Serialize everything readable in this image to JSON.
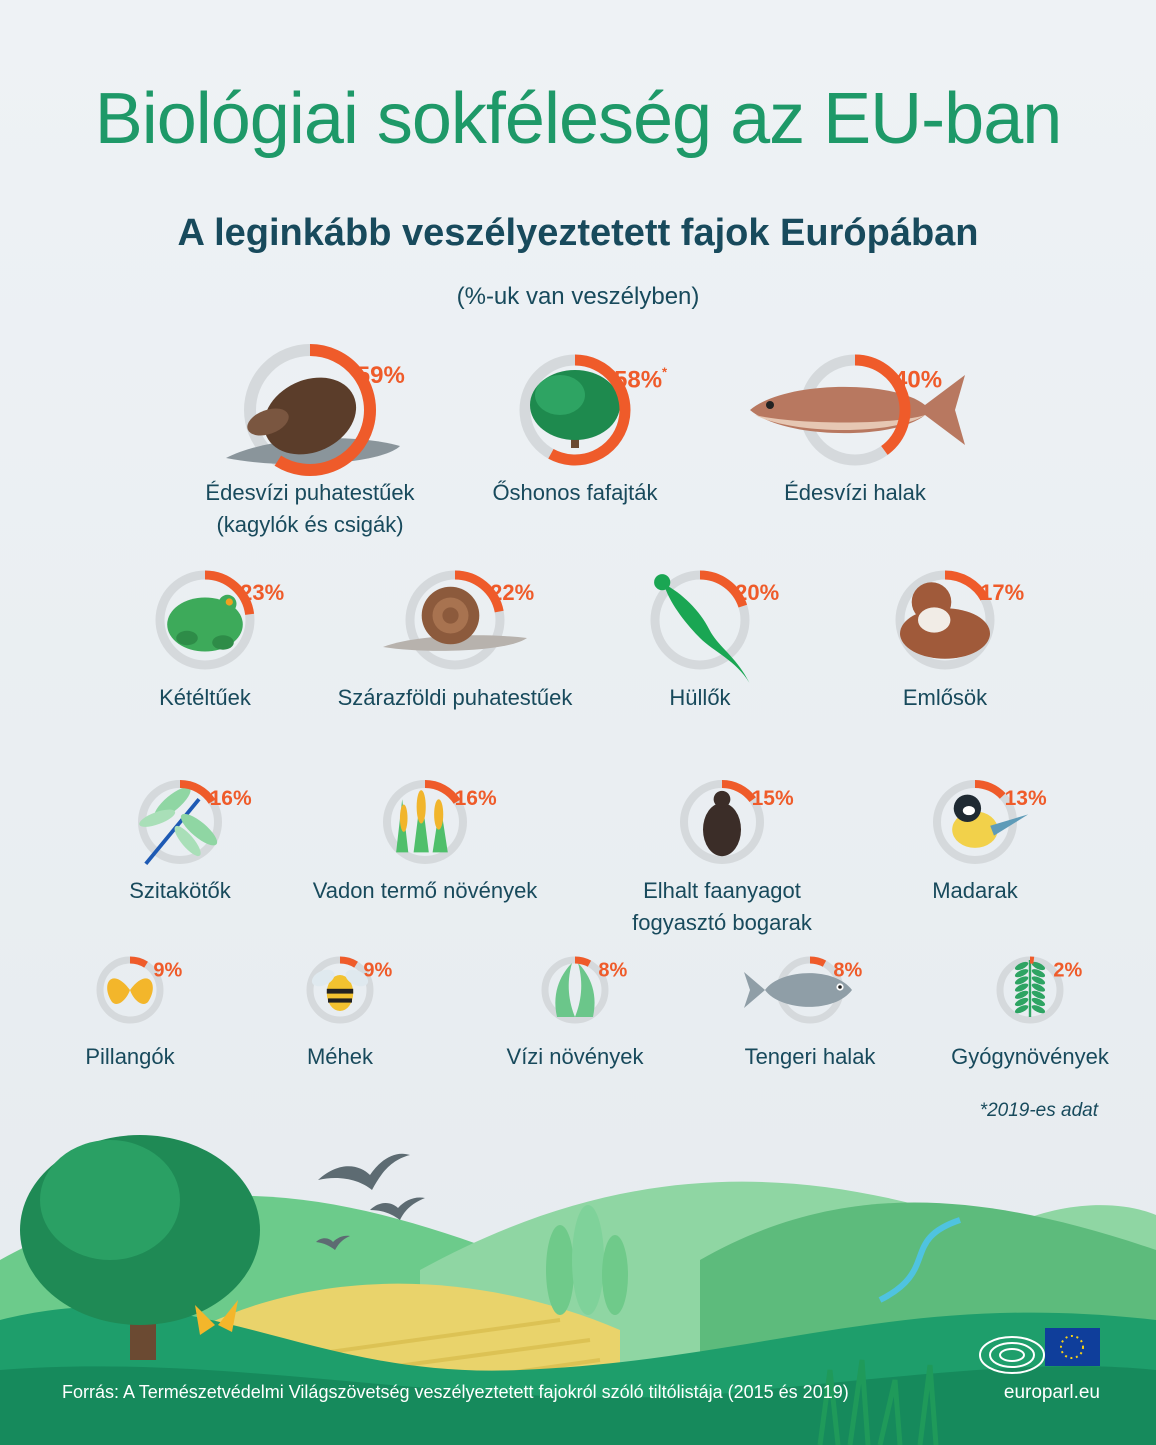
{
  "header": {
    "title": "Biológiai sokféleség az EU-ban",
    "subtitle": "A leginkább veszélyeztetett fajok Európában",
    "unit": "(%-uk van veszélyben)"
  },
  "colors": {
    "title": "#1e9968",
    "text": "#184a5c",
    "accent": "#ef5b2a",
    "ring_track": "#d5d9dc",
    "background": "#eef2f5"
  },
  "chart_data": {
    "type": "radial-progress",
    "title": "A leginkább veszélyeztetett fajok Európában",
    "unit": "(%-uk van veszélyben)",
    "ylim": [
      0,
      100
    ],
    "categories": [
      "Édesvízi puhatestűek (kagylók és csigák)",
      "Őshonos fafajták",
      "Édesvízi halak",
      "Kétéltűek",
      "Szárazföldi puhatestűek",
      "Hüllők",
      "Emlősök",
      "Szitakötők",
      "Vadon termő növények",
      "Elhalt faanyagot fogyasztó bogarak",
      "Madarak",
      "Pillangók",
      "Méhek",
      "Vízi növények",
      "Tengeri halak",
      "Gyógynövények"
    ],
    "values": [
      59,
      58,
      40,
      23,
      22,
      20,
      17,
      16,
      16,
      15,
      13,
      9,
      9,
      8,
      8,
      2
    ],
    "items": [
      {
        "label_lines": [
          "Édesvízi puhatestűek",
          "(kagylók és csigák)"
        ],
        "value": 59,
        "value_label": "59%",
        "icon": "freshwater-mollusc-icon"
      },
      {
        "label_lines": [
          "Őshonos fafajták"
        ],
        "value": 58,
        "value_label": "58%",
        "marker": "*",
        "icon": "tree-icon"
      },
      {
        "label_lines": [
          "Édesvízi halak"
        ],
        "value": 40,
        "value_label": "40%",
        "icon": "freshwater-fish-icon"
      },
      {
        "label_lines": [
          "Kétéltűek"
        ],
        "value": 23,
        "value_label": "23%",
        "icon": "frog-icon"
      },
      {
        "label_lines": [
          "Szárazföldi puhatestűek"
        ],
        "value": 22,
        "value_label": "22%",
        "icon": "snail-icon"
      },
      {
        "label_lines": [
          "Hüllők"
        ],
        "value": 20,
        "value_label": "20%",
        "icon": "lizard-icon"
      },
      {
        "label_lines": [
          "Emlősök"
        ],
        "value": 17,
        "value_label": "17%",
        "icon": "otter-icon"
      },
      {
        "label_lines": [
          "Szitakötők"
        ],
        "value": 16,
        "value_label": "16%",
        "icon": "dragonfly-icon"
      },
      {
        "label_lines": [
          "Vadon termő növények"
        ],
        "value": 16,
        "value_label": "16%",
        "icon": "wild-plants-icon"
      },
      {
        "label_lines": [
          "Elhalt faanyagot",
          "fogyasztó bogarak"
        ],
        "value": 15,
        "value_label": "15%",
        "icon": "beetle-icon"
      },
      {
        "label_lines": [
          "Madarak"
        ],
        "value": 13,
        "value_label": "13%",
        "icon": "bird-icon"
      },
      {
        "label_lines": [
          "Pillangók"
        ],
        "value": 9,
        "value_label": "9%",
        "icon": "butterfly-icon"
      },
      {
        "label_lines": [
          "Méhek"
        ],
        "value": 9,
        "value_label": "9%",
        "icon": "bee-icon"
      },
      {
        "label_lines": [
          "Vízi növények"
        ],
        "value": 8,
        "value_label": "8%",
        "icon": "water-plant-icon"
      },
      {
        "label_lines": [
          "Tengeri halak"
        ],
        "value": 8,
        "value_label": "8%",
        "icon": "sea-fish-icon"
      },
      {
        "label_lines": [
          "Gyógynövények"
        ],
        "value": 2,
        "value_label": "2%",
        "icon": "medicinal-herb-icon"
      }
    ]
  },
  "footnote": "*2019-es adat",
  "footer": {
    "source": "Forrás: A Természetvédelmi Világszövetség veszélyeztetett fajokról szóló tiltólistája (2015 és 2019)",
    "website": "europarl.eu",
    "logo_icon": "european-parliament-logo-icon",
    "flag_icon": "eu-flag-icon"
  }
}
